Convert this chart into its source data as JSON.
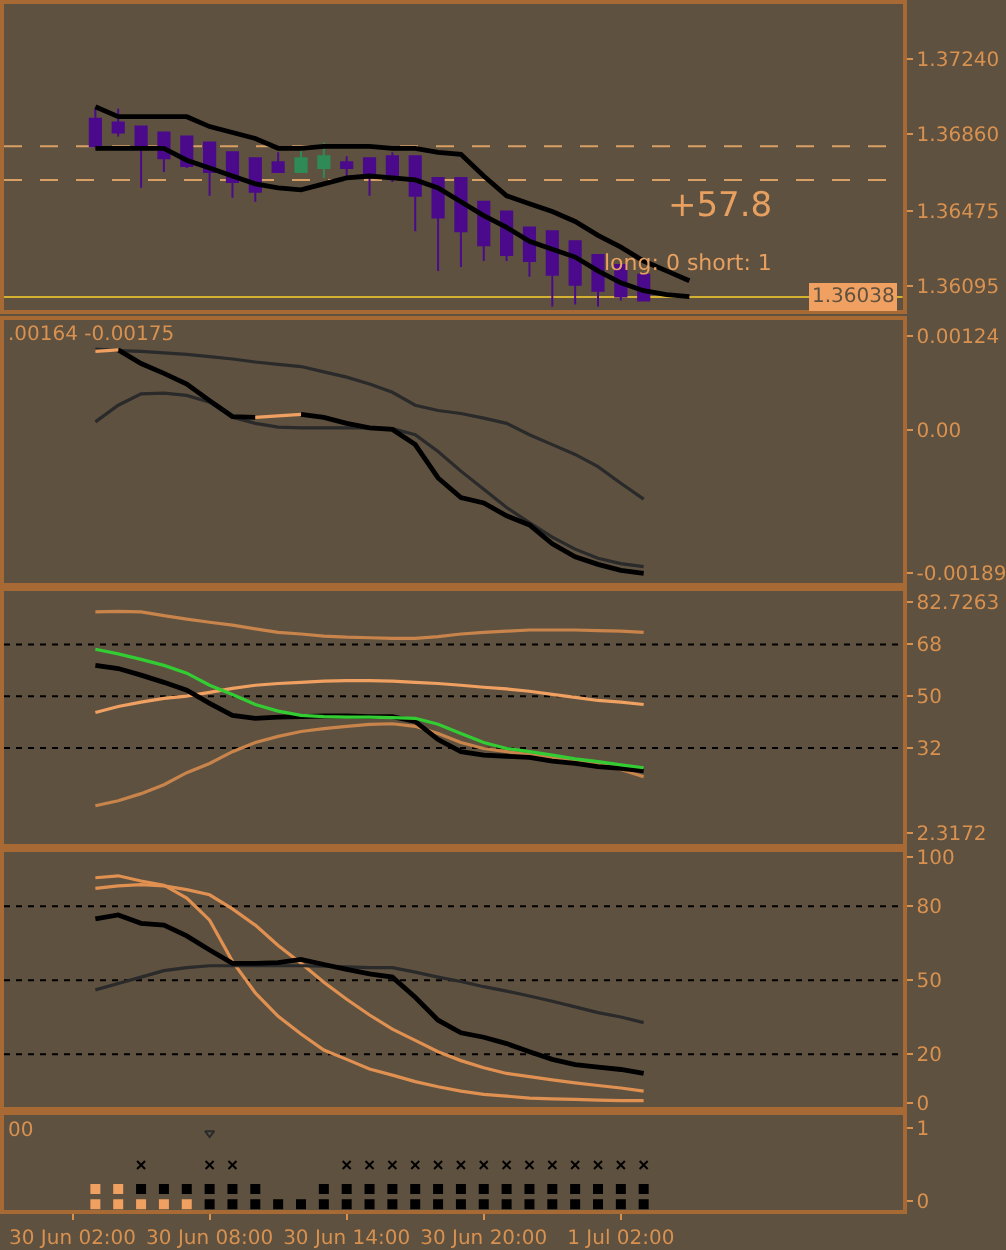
{
  "chart_data": [
    {
      "type": "candlestick",
      "tick_labels": "y",
      "xlim": [
        "--06-29T23:00",
        "--07-01T14:20"
      ],
      "ylim": [
        1.3597,
        1.3752
      ],
      "yticks": [
        {
          "value": 1.3724,
          "label": "1.37240"
        },
        {
          "value": 1.3686,
          "label": "1.36860"
        },
        {
          "value": 1.36475,
          "label": "1.36475"
        },
        {
          "value": 1.36095,
          "label": "1.36095"
        }
      ],
      "x": [
        "--06-30T03:00",
        "--06-30T04:00",
        "--06-30T05:00",
        "--06-30T06:00",
        "--06-30T07:00",
        "--06-30T08:00",
        "--06-30T09:00",
        "--06-30T10:00",
        "--06-30T11:00",
        "--06-30T12:00",
        "--06-30T13:00",
        "--06-30T14:00",
        "--06-30T15:00",
        "--06-30T16:00",
        "--06-30T17:00",
        "--06-30T18:00",
        "--06-30T19:00",
        "--06-30T20:00",
        "--06-30T21:00",
        "--06-30T22:00",
        "--06-30T23:00",
        "--07-01T00:00",
        "--07-01T01:00",
        "--07-01T02:00",
        "--07-01T03:00"
      ],
      "ohlc": [
        [
          1.3694,
          1.3699,
          1.368,
          1.368
        ],
        [
          1.3692,
          1.3699,
          1.3685,
          1.3687
        ],
        [
          1.369,
          1.369,
          1.3659,
          1.3679
        ],
        [
          1.3687,
          1.3687,
          1.3667,
          1.3674
        ],
        [
          1.3685,
          1.3685,
          1.3669,
          1.367
        ],
        [
          1.3682,
          1.3682,
          1.3655,
          1.3667
        ],
        [
          1.3677,
          1.3677,
          1.3654,
          1.3662
        ],
        [
          1.3674,
          1.3674,
          1.3652,
          1.3657
        ],
        [
          1.3672,
          1.3677,
          1.3667,
          1.3667
        ],
        [
          1.3667,
          1.3679,
          1.3667,
          1.3674
        ],
        [
          1.3669,
          1.3682,
          1.3664,
          1.3675
        ],
        [
          1.3672,
          1.3675,
          1.3664,
          1.3669
        ],
        [
          1.3674,
          1.3674,
          1.3655,
          1.3665
        ],
        [
          1.3675,
          1.3677,
          1.3662,
          1.3664
        ],
        [
          1.3675,
          1.3675,
          1.3637,
          1.3655
        ],
        [
          1.3664,
          1.3664,
          1.3617,
          1.3644
        ],
        [
          1.3664,
          1.3664,
          1.3619,
          1.3637
        ],
        [
          1.3652,
          1.3652,
          1.3622,
          1.363
        ],
        [
          1.3647,
          1.3647,
          1.3622,
          1.3625
        ],
        [
          1.3639,
          1.3639,
          1.3614,
          1.3622
        ],
        [
          1.3637,
          1.3637,
          1.3599,
          1.3615
        ],
        [
          1.3632,
          1.3632,
          1.36,
          1.361
        ],
        [
          1.3625,
          1.3625,
          1.3599,
          1.3607
        ],
        [
          1.362,
          1.362,
          1.3602,
          1.3604
        ],
        [
          1.3615,
          1.3615,
          1.3602,
          1.3602
        ]
      ],
      "colors": [
        "#4b0a8c",
        "#4b0a8c",
        "#4b0a8c",
        "#4b0a8c",
        "#4b0a8c",
        "#4b0a8c",
        "#4b0a8c",
        "#4b0a8c",
        "#4b0a8c",
        "#2e8b57",
        "#2e8b57",
        "#4b0a8c",
        "#4b0a8c",
        "#4b0a8c",
        "#4b0a8c",
        "#4b0a8c",
        "#4b0a8c",
        "#4b0a8c",
        "#4b0a8c",
        "#4b0a8c",
        "#4b0a8c",
        "#4b0a8c",
        "#4b0a8c",
        "#4b0a8c",
        "#4b0a8c"
      ],
      "series": [
        {
          "type": "line",
          "color": "#000000",
          "x": [
            "--06-30T03:00",
            "--06-30T04:00",
            "--06-30T05:00",
            "--06-30T06:00",
            "--06-30T07:00",
            "--06-30T08:00",
            "--06-30T09:00",
            "--06-30T10:00",
            "--06-30T11:00",
            "--06-30T12:00",
            "--06-30T13:00",
            "--06-30T14:00",
            "--06-30T15:00",
            "--06-30T16:00",
            "--06-30T17:00",
            "--06-30T18:00",
            "--06-30T19:00",
            "--06-30T20:00",
            "--06-30T21:00",
            "--06-30T22:00",
            "--06-30T23:00",
            "--07-01T00:00",
            "--07-01T01:00",
            "--07-01T02:00",
            "--07-01T03:00",
            "--07-01T04:00",
            "--07-01T05:00"
          ],
          "values": [
            1.37,
            1.3695,
            1.3695,
            1.3695,
            1.3695,
            1.369,
            1.3687,
            1.3684,
            1.3679,
            1.3679,
            1.368,
            1.368,
            1.368,
            1.3679,
            1.3679,
            1.3677,
            1.3676,
            1.3665,
            1.3655,
            1.3651,
            1.3647,
            1.3642,
            1.3635,
            1.3629,
            1.3622,
            1.3617,
            1.3612
          ]
        },
        {
          "type": "line",
          "color": "#000000",
          "x": [
            "--06-30T03:00",
            "--06-30T04:00",
            "--06-30T05:00",
            "--06-30T06:00",
            "--06-30T07:00",
            "--06-30T08:00",
            "--06-30T09:00",
            "--06-30T10:00",
            "--06-30T11:00",
            "--06-30T12:00",
            "--06-30T13:00",
            "--06-30T14:00",
            "--06-30T15:00",
            "--06-30T16:00",
            "--06-30T17:00",
            "--06-30T18:00",
            "--06-30T19:00",
            "--06-30T20:00",
            "--06-30T21:00",
            "--06-30T22:00",
            "--06-30T23:00",
            "--07-01T00:00",
            "--07-01T01:00",
            "--07-01T02:00",
            "--07-01T03:00",
            "--07-01T04:00",
            "--07-01T05:00"
          ],
          "values": [
            1.3679,
            1.3679,
            1.3679,
            1.3679,
            1.3673,
            1.3669,
            1.3665,
            1.3661,
            1.3659,
            1.3658,
            1.3661,
            1.3664,
            1.3665,
            1.3664,
            1.3663,
            1.3659,
            1.3652,
            1.3645,
            1.3639,
            1.3632,
            1.3628,
            1.3624,
            1.3617,
            1.3611,
            1.3607,
            1.3605,
            1.3604
          ]
        }
      ],
      "ref_lines": [
        {
          "axis": "y",
          "value": 1.368,
          "color": "#d9a066",
          "line_style": "dashed"
        },
        {
          "axis": "y",
          "value": 1.3663,
          "color": "#d9a066",
          "line_style": "dashed"
        },
        {
          "axis": "y",
          "value": 1.36038,
          "label": "1.36038",
          "color": "#d4b030",
          "line_style": "solid"
        }
      ],
      "annotations": [
        "+57.8",
        "long: 0 short: 1"
      ]
    },
    {
      "type": "line",
      "tick_labels": "y",
      "xlim": [
        "--06-29T23:00",
        "--07-01T14:20"
      ],
      "ylim": [
        -0.00202,
        0.00145
      ],
      "yticks": [
        0.00124,
        {
          "value": 0,
          "label": "0.00"
        },
        -0.00189
      ],
      "x": [
        "--06-30T03:00",
        "--06-30T04:00",
        "--06-30T05:00",
        "--06-30T06:00",
        "--06-30T07:00",
        "--06-30T08:00",
        "--06-30T09:00",
        "--06-30T10:00",
        "--06-30T11:00",
        "--06-30T12:00",
        "--06-30T13:00",
        "--06-30T14:00",
        "--06-30T15:00",
        "--06-30T16:00",
        "--06-30T17:00",
        "--06-30T18:00",
        "--06-30T19:00",
        "--06-30T20:00",
        "--06-30T21:00",
        "--06-30T22:00",
        "--06-30T23:00",
        "--07-01T00:00",
        "--07-01T01:00",
        "--07-01T02:00",
        "--07-01T03:00"
      ],
      "series": [
        {
          "color": "#2a2a2a",
          "values": [
            0.00107,
            0.00105,
            0.00104,
            0.00102,
            0.001,
            0.00097,
            0.00094,
            0.0009,
            0.00087,
            0.00084,
            0.00077,
            0.0007,
            0.00061,
            0.0005,
            0.00033,
            0.00026,
            0.00022,
            0.00016,
            9e-05,
            -6e-05,
            -0.00019,
            -0.00032,
            -0.00048,
            -0.0007,
            -0.00091
          ]
        },
        {
          "color": "#2a2a2a",
          "values": [
            0.00011,
            0.00033,
            0.00048,
            0.00049,
            0.00046,
            0.00037,
            0.00017,
            9e-05,
            4e-05,
            3e-05,
            3e-05,
            3e-05,
            3e-05,
            2e-05,
            -6e-05,
            -0.00028,
            -0.00054,
            -0.00078,
            -0.00102,
            -0.00122,
            -0.00141,
            -0.00157,
            -0.00169,
            -0.00176,
            -0.0018
          ]
        },
        {
          "color": "#000000",
          "values": [
            null,
            0.00106,
            0.00088,
            0.00075,
            0.00061,
            0.00039,
            0.00018,
            0.00017,
            null,
            0.00021,
            0.00017,
            9e-05,
            3e-05,
            1e-05,
            -0.00019,
            -0.00063,
            -0.00089,
            -0.00096,
            -0.00113,
            -0.00125,
            -0.0015,
            -0.00167,
            -0.00177,
            -0.00185,
            -0.00189
          ]
        },
        {
          "color": "#f0a060",
          "values": [
            0.00104,
            0.00106,
            null,
            null,
            null,
            null,
            null,
            0.00017,
            0.00019,
            0.00021,
            null,
            null,
            null,
            null,
            null,
            null,
            null,
            null,
            null,
            null,
            null,
            null,
            null,
            null,
            null
          ]
        }
      ],
      "annotations": [
        ".00164 -0.00175"
      ]
    },
    {
      "type": "line",
      "tick_labels": "y",
      "xlim": [
        "--06-29T23:00",
        "--07-01T14:20"
      ],
      "ylim": [
        -1.5,
        86.5
      ],
      "yticks": [
        82.7263,
        68,
        50,
        32,
        2.3172
      ],
      "x": [
        "--06-30T03:00",
        "--06-30T04:00",
        "--06-30T05:00",
        "--06-30T06:00",
        "--06-30T07:00",
        "--06-30T08:00",
        "--06-30T09:00",
        "--06-30T10:00",
        "--06-30T11:00",
        "--06-30T12:00",
        "--06-30T13:00",
        "--06-30T14:00",
        "--06-30T15:00",
        "--06-30T16:00",
        "--06-30T17:00",
        "--06-30T18:00",
        "--06-30T19:00",
        "--06-30T20:00",
        "--06-30T21:00",
        "--06-30T22:00",
        "--06-30T23:00",
        "--07-01T00:00",
        "--07-01T01:00",
        "--07-01T02:00",
        "--07-01T03:00"
      ],
      "series": [
        {
          "color": "#c8844a",
          "values": [
            79.3,
            79.5,
            79.3,
            78.0,
            76.8,
            75.7,
            74.7,
            73.4,
            72.2,
            71.6,
            70.9,
            70.5,
            70.3,
            70.1,
            70.1,
            70.7,
            71.6,
            72.2,
            72.6,
            73.0,
            73.0,
            73.0,
            72.8,
            72.6,
            72.2
          ]
        },
        {
          "color": "#f0a060",
          "values": [
            44.3,
            46.4,
            47.9,
            49.2,
            50.0,
            51.3,
            52.7,
            53.8,
            54.4,
            54.8,
            55.2,
            55.4,
            55.4,
            55.2,
            54.8,
            54.4,
            53.8,
            53.1,
            52.5,
            51.7,
            50.6,
            49.6,
            48.5,
            47.9,
            47.1
          ]
        },
        {
          "color": "#c8844a",
          "values": [
            11.9,
            13.6,
            16.1,
            19.2,
            23.4,
            26.6,
            30.7,
            33.9,
            36.0,
            37.7,
            38.7,
            39.5,
            40.2,
            40.4,
            39.5,
            37.0,
            33.9,
            31.8,
            30.7,
            29.7,
            28.7,
            27.6,
            26.6,
            24.5,
            22.0
          ]
        },
        {
          "color": "#000000",
          "values": [
            60.7,
            59.6,
            57.3,
            54.8,
            52.1,
            47.5,
            43.3,
            42.3,
            42.7,
            42.9,
            43.1,
            43.1,
            42.9,
            42.9,
            41.2,
            34.9,
            30.7,
            29.5,
            29.1,
            28.7,
            27.4,
            26.6,
            25.5,
            24.9,
            24.0
          ]
        },
        {
          "color": "#33cc33",
          "values": [
            66.3,
            64.7,
            62.8,
            60.7,
            58.0,
            53.8,
            50.6,
            47.1,
            44.8,
            43.3,
            42.9,
            42.7,
            42.7,
            42.5,
            42.3,
            40.2,
            37.0,
            33.9,
            31.8,
            30.7,
            29.5,
            28.2,
            27.2,
            26.1,
            25.1
          ]
        }
      ],
      "ref_lines": [
        {
          "axis": "y",
          "value": 68,
          "color": "#000000",
          "line_style": "dotted"
        },
        {
          "axis": "y",
          "value": 50,
          "color": "#000000",
          "line_style": "dotted"
        },
        {
          "axis": "y",
          "value": 32,
          "color": "#000000",
          "line_style": "dotted"
        }
      ]
    },
    {
      "type": "line",
      "tick_labels": "y",
      "xlim": [
        "--06-29T23:00",
        "--07-01T14:20"
      ],
      "ylim": [
        -1.5,
        102
      ],
      "yticks": [
        100,
        80,
        50,
        20,
        0
      ],
      "x": [
        "--06-30T03:00",
        "--06-30T04:00",
        "--06-30T05:00",
        "--06-30T06:00",
        "--06-30T07:00",
        "--06-30T08:00",
        "--06-30T09:00",
        "--06-30T10:00",
        "--06-30T11:00",
        "--06-30T12:00",
        "--06-30T13:00",
        "--06-30T14:00",
        "--06-30T15:00",
        "--06-30T16:00",
        "--06-30T17:00",
        "--06-30T18:00",
        "--06-30T19:00",
        "--06-30T20:00",
        "--06-30T21:00",
        "--06-30T22:00",
        "--06-30T23:00",
        "--07-01T00:00",
        "--07-01T01:00",
        "--07-01T02:00",
        "--07-01T03:00"
      ],
      "series": [
        {
          "color": "#e09050",
          "values": [
            91.6,
            92.4,
            90.3,
            88.6,
            83.4,
            74.4,
            57.7,
            44.9,
            35.4,
            28.2,
            21.7,
            17.9,
            14.0,
            11.5,
            8.9,
            6.8,
            5.0,
            3.7,
            3.0,
            2.2,
            1.9,
            1.7,
            1.4,
            1.2,
            1.2
          ]
        },
        {
          "color": "#e09050",
          "values": [
            87.3,
            88.3,
            88.8,
            88.3,
            86.8,
            84.7,
            79.0,
            72.4,
            64.1,
            56.9,
            49.2,
            42.3,
            35.9,
            30.2,
            25.6,
            21.0,
            17.4,
            14.5,
            12.2,
            10.9,
            9.6,
            8.4,
            7.3,
            6.3,
            5.0
          ]
        },
        {
          "color": "#2a2a2a",
          "values": [
            46.1,
            48.7,
            51.3,
            53.9,
            55.1,
            55.9,
            55.9,
            55.9,
            55.9,
            55.9,
            55.7,
            55.4,
            55.1,
            55.1,
            53.3,
            51.3,
            49.5,
            47.4,
            45.6,
            43.6,
            41.5,
            39.2,
            36.9,
            35.1,
            32.8
          ]
        },
        {
          "color": "#000000",
          "values": [
            74.9,
            76.5,
            73.1,
            72.4,
            68.0,
            62.3,
            56.9,
            56.9,
            57.2,
            58.5,
            56.4,
            54.4,
            52.6,
            51.3,
            43.1,
            33.8,
            28.7,
            26.9,
            24.3,
            21.0,
            17.9,
            15.8,
            14.8,
            13.8,
            12.2
          ]
        }
      ],
      "ref_lines": [
        {
          "axis": "y",
          "value": 80,
          "color": "#000000",
          "line_style": "dotted"
        },
        {
          "axis": "y",
          "value": 50,
          "color": "#000000",
          "line_style": "dotted"
        },
        {
          "axis": "y",
          "value": 20,
          "color": "#000000",
          "line_style": "dotted"
        }
      ]
    },
    {
      "type": "scatter",
      "xlim": [
        "--06-29T23:00",
        "--07-01T14:20"
      ],
      "ylim": [
        -0.13,
        1.18
      ],
      "xticks": [
        {
          "value": "--06-30T02:00",
          "label": "30 Jun 02:00"
        },
        {
          "value": "--06-30T08:00",
          "label": "30 Jun 08:00"
        },
        {
          "value": "--06-30T14:00",
          "label": "30 Jun 14:00"
        },
        {
          "value": "--06-30T20:00",
          "label": "30 Jun 20:00"
        },
        {
          "value": "--07-01T02:00",
          "label": "1 Jul 02:00"
        }
      ],
      "yticks": [
        1,
        0
      ],
      "x": [
        "--06-30T03:00",
        "--06-30T04:00",
        "--06-30T05:00",
        "--06-30T06:00",
        "--06-30T07:00",
        "--06-30T08:00",
        "--06-30T09:00",
        "--06-30T10:00",
        "--06-30T11:00",
        "--06-30T12:00",
        "--06-30T13:00",
        "--06-30T14:00",
        "--06-30T15:00",
        "--06-30T16:00",
        "--06-30T17:00",
        "--06-30T18:00",
        "--06-30T19:00",
        "--06-30T20:00",
        "--06-30T21:00",
        "--06-30T22:00",
        "--06-30T23:00",
        "--07-01T00:00",
        "--07-01T01:00",
        "--07-01T02:00",
        "--07-01T03:00"
      ],
      "series": [
        {
          "marker": "square",
          "colors": [
            "#f0a060",
            "#f0a060",
            "#000000",
            "#000000",
            "#000000",
            "#000000",
            "#000000",
            "#000000",
            "#000000",
            "#000000",
            "#000000",
            "#000000",
            "#000000",
            "#000000",
            "#000000",
            "#000000",
            "#000000",
            "#000000",
            "#000000",
            "#000000",
            "#000000",
            "#000000",
            "#000000",
            "#000000",
            "#000000"
          ],
          "values": [
            0.16,
            0.16,
            0.16,
            0.16,
            0.16,
            0.16,
            0.16,
            0.16,
            null,
            null,
            0.16,
            0.16,
            0.16,
            0.16,
            0.16,
            0.16,
            0.16,
            0.16,
            0.16,
            0.16,
            0.16,
            0.16,
            0.16,
            0.16,
            0.16
          ]
        },
        {
          "marker": "cross",
          "color": "#000000",
          "values": [
            null,
            null,
            0.49,
            null,
            null,
            0.49,
            0.49,
            null,
            null,
            null,
            null,
            0.49,
            0.49,
            0.49,
            0.49,
            0.49,
            0.49,
            0.49,
            0.49,
            0.49,
            0.49,
            0.49,
            0.49,
            0.49,
            0.49
          ]
        },
        {
          "marker": "square",
          "colors": [
            "#f0a060",
            "#f0a060",
            "#f0a060",
            "#f0a060",
            "#f0a060",
            "#000000",
            "#000000",
            "#000000",
            "#000000",
            "#000000",
            "#000000",
            "#000000",
            "#000000",
            "#000000",
            "#000000",
            "#000000",
            "#000000",
            "#000000",
            "#000000",
            "#000000",
            "#000000",
            "#000000",
            "#000000",
            "#000000",
            "#000000"
          ],
          "values": [
            -0.05,
            -0.05,
            -0.05,
            -0.05,
            -0.05,
            -0.05,
            -0.05,
            -0.05,
            -0.05,
            -0.05,
            -0.05,
            -0.05,
            -0.05,
            -0.05,
            -0.05,
            -0.05,
            -0.05,
            -0.05,
            -0.05,
            -0.05,
            -0.05,
            -0.05,
            -0.05,
            -0.05,
            -0.05
          ]
        },
        {
          "marker": "triangle",
          "color": "#2a2a2a",
          "values": [
            null,
            null,
            null,
            null,
            null,
            0.93,
            null,
            null,
            null,
            null,
            null,
            null,
            null,
            null,
            null,
            null,
            null,
            null,
            null,
            null,
            null,
            null,
            null,
            null,
            null
          ]
        }
      ],
      "annotations": [
        "00"
      ]
    }
  ]
}
